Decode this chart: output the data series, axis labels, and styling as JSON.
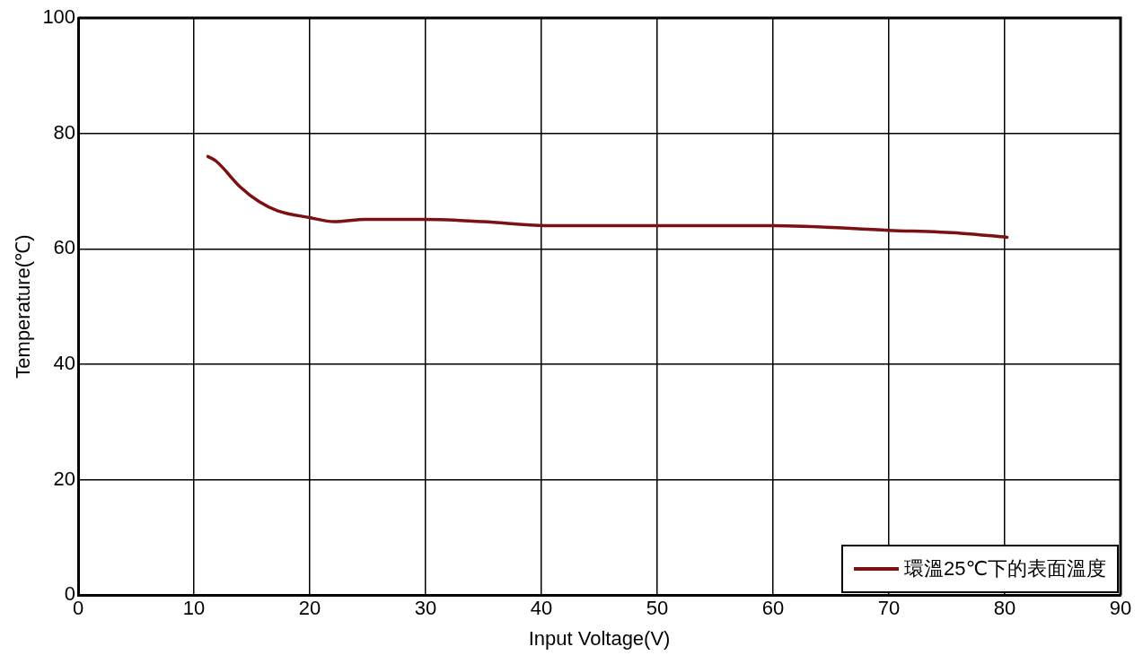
{
  "chart_data": {
    "type": "line",
    "xlabel": "Input Voltage(V)",
    "ylabel": "Temperature(℃)",
    "xlim": [
      0,
      90
    ],
    "xticks": [
      0,
      10,
      20,
      30,
      40,
      50,
      60,
      70,
      80,
      90
    ],
    "ylim": [
      0,
      100
    ],
    "yticks": [
      0,
      20,
      40,
      60,
      80,
      100
    ],
    "grid": true,
    "legend": "bottom right",
    "marker": "none",
    "line_style": "solid",
    "series": [
      {
        "name": "環溫25℃下的表面溫度",
        "color": "#7b1113",
        "x": [
          11.2,
          11.9,
          14.0,
          15.6,
          17.2,
          20.0,
          22.1,
          24.8,
          29.9,
          35.0,
          40.4,
          50.0,
          60.0,
          70.0,
          76.2,
          80.2
        ],
        "values": [
          76.0,
          75.2,
          70.7,
          68.2,
          66.6,
          65.4,
          64.7,
          65.1,
          65.1,
          64.7,
          64.0,
          64.0,
          64.0,
          63.2,
          62.7,
          62.0
        ]
      }
    ]
  }
}
